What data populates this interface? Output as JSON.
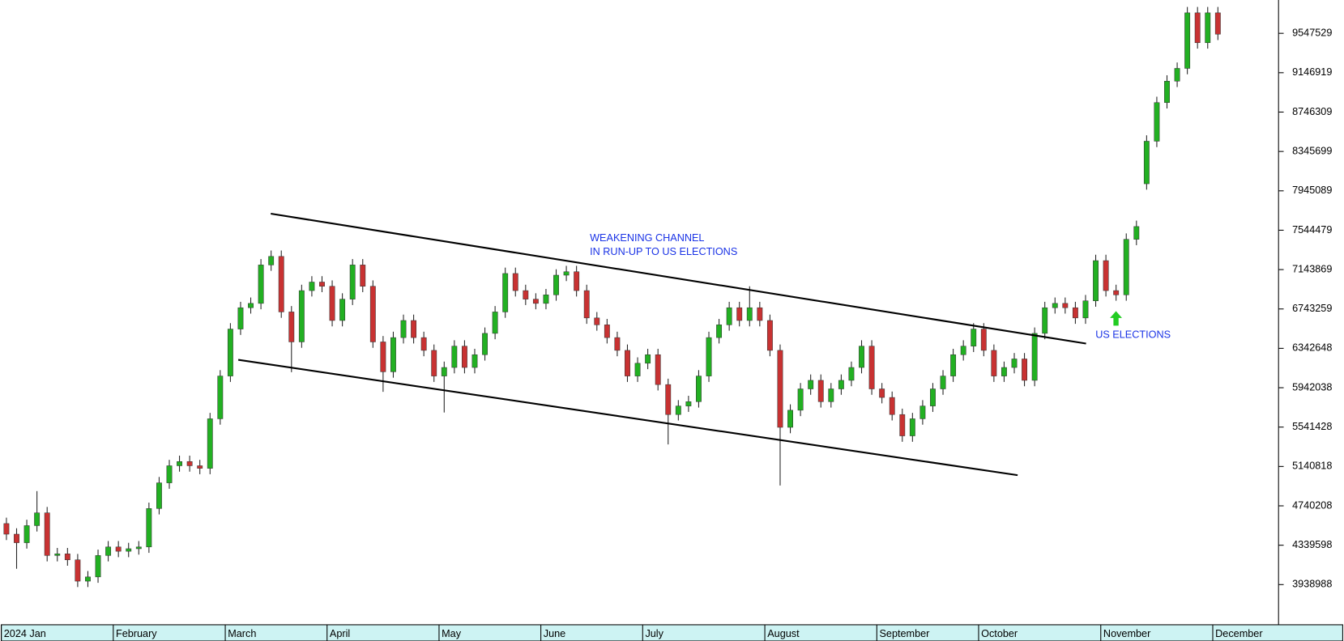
{
  "chart_data": {
    "type": "candlestick",
    "categories": [
      "2024 Jan",
      null,
      null,
      null,
      null,
      null,
      null,
      null,
      null,
      null,
      null,
      "February",
      null,
      null,
      null,
      null,
      null,
      null,
      null,
      null,
      null,
      null,
      "March",
      null,
      null,
      null,
      null,
      null,
      null,
      null,
      null,
      null,
      "April",
      null,
      null,
      null,
      null,
      null,
      null,
      null,
      null,
      null,
      null,
      "May",
      null,
      null,
      null,
      null,
      null,
      null,
      null,
      null,
      null,
      "June",
      null,
      null,
      null,
      null,
      null,
      null,
      null,
      null,
      null,
      "July",
      null,
      null,
      null,
      null,
      null,
      null,
      null,
      null,
      null,
      null,
      null,
      "August",
      null,
      null,
      null,
      null,
      null,
      null,
      null,
      null,
      null,
      null,
      "September",
      null,
      null,
      null,
      null,
      null,
      null,
      null,
      null,
      null,
      "October",
      null,
      null,
      null,
      null,
      null,
      null,
      null,
      null,
      null,
      null,
      null,
      "November",
      null,
      null,
      null,
      null,
      null,
      null,
      null,
      null,
      null,
      null,
      "December"
    ],
    "open": [
      4560000,
      4452000,
      4365000,
      4539000,
      4669000,
      4235000,
      4252000,
      4191000,
      3974000,
      4017000,
      4235000,
      4322000,
      4278000,
      4304000,
      4322000,
      4713000,
      4974000,
      5148000,
      5191000,
      5148000,
      5122000,
      5626000,
      6061000,
      6539000,
      6756000,
      6800000,
      7191000,
      7278000,
      6713000,
      6408000,
      6930000,
      7017000,
      6974000,
      6626000,
      6843000,
      7191000,
      6974000,
      6408000,
      6104000,
      6452000,
      6626000,
      6452000,
      6322000,
      6061000,
      6148000,
      6365000,
      6148000,
      6278000,
      6495000,
      6713000,
      7104000,
      6930000,
      6843000,
      6800000,
      6887000,
      7087000,
      7122000,
      6930000,
      6652000,
      6582000,
      6452000,
      6322000,
      6061000,
      6191000,
      6278000,
      5974000,
      5669000,
      5756000,
      5800000,
      6061000,
      6452000,
      6582000,
      6756000,
      6626000,
      6756000,
      6626000,
      6322000,
      5539000,
      5713000,
      5930000,
      6017000,
      5800000,
      5930000,
      6017000,
      6148000,
      6365000,
      5930000,
      5843000,
      5669000,
      5452000,
      5626000,
      5756000,
      5930000,
      6061000,
      6278000,
      6365000,
      6539000,
      6322000,
      6061000,
      6148000,
      6235000,
      6017000,
      6495000,
      6756000,
      6800000,
      6756000,
      6652000,
      6826000,
      7235000,
      6930000,
      6887000,
      7452000,
      8017000,
      8450000,
      8843000,
      9061000,
      9191000,
      9756000,
      9452000,
      9756000
    ],
    "high": [
      4620000,
      4512000,
      4599000,
      4890000,
      4729000,
      4312000,
      4312000,
      4251000,
      4077000,
      4295000,
      4382000,
      4382000,
      4364000,
      4382000,
      4773000,
      5034000,
      5208000,
      5251000,
      5251000,
      5208000,
      5686000,
      6121000,
      6599000,
      6816000,
      6860000,
      7251000,
      7338000,
      7338000,
      6773000,
      6990000,
      7077000,
      7077000,
      7034000,
      6903000,
      7251000,
      7251000,
      7034000,
      6468000,
      6512000,
      6686000,
      6686000,
      6512000,
      6382000,
      6208000,
      6425000,
      6425000,
      6338000,
      6555000,
      6773000,
      7164000,
      7164000,
      6990000,
      6903000,
      6947000,
      7147000,
      7182000,
      7182000,
      6990000,
      6712000,
      6642000,
      6512000,
      6382000,
      6251000,
      6338000,
      6338000,
      6034000,
      5816000,
      5860000,
      6121000,
      6512000,
      6642000,
      6816000,
      6816000,
      6974000,
      6816000,
      6686000,
      6382000,
      5773000,
      5990000,
      6077000,
      6077000,
      5990000,
      6077000,
      6208000,
      6425000,
      6425000,
      5990000,
      5903000,
      5729000,
      5686000,
      5816000,
      5990000,
      6121000,
      6338000,
      6425000,
      6599000,
      6599000,
      6382000,
      6208000,
      6295000,
      6295000,
      6555000,
      6816000,
      6860000,
      6860000,
      6816000,
      6886000,
      7295000,
      7295000,
      6990000,
      7512000,
      7642000,
      8510000,
      8903000,
      9121000,
      9251000,
      9816000,
      9816000,
      9816000,
      9816000
    ],
    "low": [
      4392000,
      4100000,
      4305000,
      4479000,
      4175000,
      4175000,
      4131000,
      3914000,
      3914000,
      3957000,
      4175000,
      4218000,
      4218000,
      4244000,
      4262000,
      4653000,
      4914000,
      5088000,
      5088000,
      5062000,
      5062000,
      5566000,
      6001000,
      6479000,
      6696000,
      6740000,
      7131000,
      6653000,
      6100000,
      6348000,
      6870000,
      6914000,
      6566000,
      6566000,
      6783000,
      6914000,
      6348000,
      5900000,
      6044000,
      6392000,
      6392000,
      6262000,
      6001000,
      5690000,
      6088000,
      6088000,
      6088000,
      6218000,
      6435000,
      6653000,
      6870000,
      6783000,
      6740000,
      6740000,
      6827000,
      7027000,
      6870000,
      6592000,
      6522000,
      6392000,
      6262000,
      6001000,
      6001000,
      6131000,
      5914000,
      5365000,
      5609000,
      5696000,
      5740000,
      6001000,
      6392000,
      6522000,
      6566000,
      6566000,
      6566000,
      6262000,
      4947000,
      5479000,
      5653000,
      5870000,
      5740000,
      5740000,
      5870000,
      5957000,
      6088000,
      5870000,
      5783000,
      5609000,
      5392000,
      5392000,
      5566000,
      5696000,
      5870000,
      6001000,
      6218000,
      6305000,
      6262000,
      6001000,
      6001000,
      6088000,
      5957000,
      5957000,
      6435000,
      6696000,
      6696000,
      6592000,
      6592000,
      6766000,
      6870000,
      6827000,
      6827000,
      7392000,
      7957000,
      8390000,
      8783000,
      9001000,
      9131000,
      9392000,
      9392000,
      9479000
    ],
    "close": [
      4452000,
      4365000,
      4539000,
      4669000,
      4235000,
      4252000,
      4191000,
      3974000,
      4017000,
      4235000,
      4322000,
      4278000,
      4304000,
      4322000,
      4713000,
      4974000,
      5148000,
      5191000,
      5148000,
      5122000,
      5626000,
      6061000,
      6539000,
      6756000,
      6800000,
      7191000,
      7278000,
      6713000,
      6408000,
      6930000,
      7017000,
      6974000,
      6626000,
      6843000,
      7191000,
      6974000,
      6408000,
      6104000,
      6452000,
      6626000,
      6452000,
      6322000,
      6061000,
      6148000,
      6365000,
      6148000,
      6278000,
      6495000,
      6713000,
      7104000,
      6930000,
      6843000,
      6800000,
      6887000,
      7087000,
      7122000,
      6930000,
      6652000,
      6582000,
      6452000,
      6322000,
      6061000,
      6191000,
      6278000,
      5974000,
      5669000,
      5756000,
      5800000,
      6061000,
      6452000,
      6582000,
      6756000,
      6626000,
      6756000,
      6626000,
      6322000,
      5539000,
      5713000,
      5930000,
      6017000,
      5800000,
      5930000,
      6017000,
      6148000,
      6365000,
      5930000,
      5843000,
      5669000,
      5452000,
      5626000,
      5756000,
      5930000,
      6061000,
      6278000,
      6365000,
      6539000,
      6322000,
      6061000,
      6148000,
      6235000,
      6017000,
      6495000,
      6756000,
      6800000,
      6756000,
      6652000,
      6826000,
      7235000,
      6930000,
      6887000,
      7452000,
      7582000,
      8450000,
      8843000,
      9061000,
      9191000,
      9756000,
      9452000,
      9756000,
      9539000
    ],
    "up_color": "#22b022",
    "down_color": "#c83232",
    "ylim": [
      3539008,
      9886649
    ],
    "yticks": [
      3938988,
      4339598,
      4740208,
      5140818,
      5541428,
      5942038,
      6342648,
      6743259,
      7143869,
      7544479,
      7945089,
      8345699,
      8746309,
      9146919,
      9547529
    ],
    "annotations": [
      "WEAKENING CHANNEL",
      "IN RUN-UP TO US ELECTIONS",
      "US ELECTIONS"
    ]
  }
}
